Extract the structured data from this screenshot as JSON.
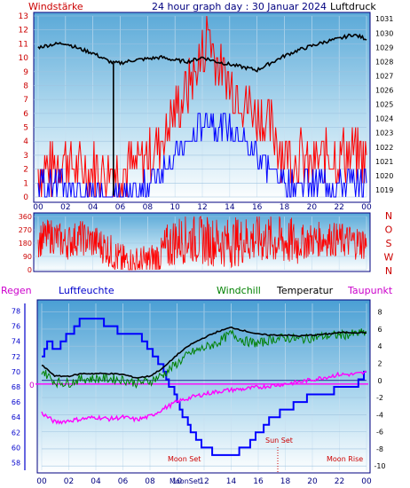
{
  "header": {
    "left_label": "Windstärke",
    "title": "24 hour graph day : 30 Januar 2024",
    "right_label": "Luftdruck"
  },
  "labels": {
    "regen": "Regen",
    "luftfeuchte": "Luftfeuchte",
    "windchill": "Windchill",
    "temperatur": "Temperatur",
    "taupunkt": "Taupunkt",
    "moon_set_1": "Moon Set",
    "moon_set_2": "MoonSet",
    "sun_set": "Sun Set",
    "moon_rise": "Moon Rise",
    "regen_zero": "0"
  },
  "colors": {
    "wind_gust": "#ff0000",
    "wind_avg": "#0000ff",
    "pressure": "#000000",
    "direction": "#ff0000",
    "humidity": "#0000ff",
    "windchill": "#008000",
    "temperature": "#000000",
    "dewpoint": "#ff00ff",
    "axis_left": "#cc0000",
    "axis_humidity": "#0000cc",
    "frame": "#000080"
  },
  "chart_data": [
    {
      "type": "line",
      "name": "wind_and_pressure",
      "xlabel": "",
      "ylabel_left": "Windstärke",
      "ylabel_right": "Luftdruck",
      "x_ticks": [
        "00",
        "02",
        "04",
        "06",
        "08",
        "10",
        "12",
        "14",
        "16",
        "18",
        "20",
        "22",
        "00"
      ],
      "left_ticks": [
        0,
        1,
        2,
        3,
        4,
        5,
        6,
        7,
        8,
        9,
        10,
        11,
        12,
        13
      ],
      "right_ticks": [
        1019,
        1020,
        1021,
        1022,
        1023,
        1024,
        1025,
        1026,
        1027,
        1028,
        1029,
        1030,
        1031
      ],
      "ylim_left": [
        0,
        13
      ],
      "ylim_right": [
        1018.5,
        1031.2
      ],
      "series": [
        {
          "name": "Luftdruck",
          "hours": [
            0,
            1,
            2,
            3,
            4,
            5,
            5.5,
            6,
            7,
            8,
            9,
            10,
            11,
            12,
            13,
            14,
            15,
            16,
            17,
            18,
            19,
            20,
            21,
            22,
            23,
            24
          ],
          "values": [
            1029.0,
            1029.2,
            1029.3,
            1028.9,
            1028.6,
            1028.1,
            1027.9,
            1027.9,
            1028.1,
            1028.2,
            1028.3,
            1028.1,
            1028.0,
            1028.3,
            1028.0,
            1027.8,
            1027.6,
            1027.4,
            1027.9,
            1028.4,
            1028.8,
            1029.1,
            1029.4,
            1029.6,
            1029.9,
            1029.6
          ]
        },
        {
          "name": "Windspitzen",
          "hours": [
            0,
            1,
            2,
            3,
            4,
            5,
            6,
            7,
            8,
            9,
            10,
            11,
            12,
            12.5,
            13,
            14,
            15,
            16,
            17,
            18,
            19,
            20,
            21,
            22,
            23,
            24
          ],
          "values": [
            2,
            2,
            3,
            2,
            2,
            2,
            2,
            2,
            3,
            4,
            6,
            8,
            10,
            12,
            10,
            8,
            7,
            6,
            5,
            3,
            3,
            2,
            3,
            3,
            3,
            3
          ]
        },
        {
          "name": "Wind",
          "hours": [
            0,
            1,
            2,
            3,
            4,
            5,
            6,
            7,
            8,
            9,
            10,
            11,
            12,
            12.5,
            13,
            14,
            15,
            16,
            17,
            18,
            19,
            20,
            21,
            22,
            23,
            24
          ],
          "values": [
            1,
            1,
            1,
            0,
            0,
            0,
            0,
            0,
            1,
            2,
            3,
            4,
            5,
            6,
            5,
            5,
            4,
            3,
            2,
            1,
            1,
            1,
            1,
            1,
            1,
            1
          ]
        }
      ]
    },
    {
      "type": "line",
      "name": "wind_direction",
      "x_ticks": [
        "00",
        "02",
        "04",
        "06",
        "08",
        "10",
        "12",
        "14",
        "16",
        "18",
        "20",
        "22",
        "00"
      ],
      "y_ticks": [
        0,
        90,
        180,
        270,
        360
      ],
      "compass": [
        "N",
        "W",
        "S",
        "O",
        "N"
      ],
      "ylim": [
        0,
        360
      ],
      "series": [
        {
          "name": "Windrichtung",
          "hours": [
            0,
            1,
            2,
            3,
            4,
            5,
            6,
            7,
            8,
            9,
            10,
            11,
            12,
            13,
            14,
            15,
            16,
            17,
            18,
            19,
            20,
            21,
            22,
            23,
            24
          ],
          "values": [
            200,
            230,
            180,
            220,
            190,
            150,
            60,
            40,
            50,
            100,
            200,
            210,
            200,
            190,
            180,
            200,
            210,
            200,
            190,
            180,
            200,
            210,
            200,
            190,
            180
          ]
        }
      ]
    },
    {
      "type": "line",
      "name": "temperature_humidity",
      "x_ticks": [
        "00",
        "02",
        "04",
        "06",
        "08",
        "10",
        "12",
        "14",
        "16",
        "18",
        "20",
        "22",
        "00"
      ],
      "left_ticks": [
        58,
        60,
        62,
        64,
        66,
        68,
        70,
        72,
        74,
        76,
        78
      ],
      "right_ticks": [
        -10,
        -8,
        -6,
        -4,
        -2,
        0,
        2,
        4,
        6,
        8
      ],
      "ylim_left": [
        57,
        79
      ],
      "ylim_right": [
        -10.5,
        9
      ],
      "series": [
        {
          "name": "Luftfeuchte",
          "hours": [
            0,
            0.5,
            1,
            2,
            3,
            4,
            5,
            6,
            7,
            8,
            9,
            9.5,
            10,
            11,
            12,
            13,
            14,
            15,
            16,
            17,
            18,
            19,
            20,
            21,
            22,
            23,
            24
          ],
          "values": [
            72,
            74,
            73,
            75,
            77,
            77,
            76,
            75,
            75,
            73,
            70,
            68,
            66,
            62,
            60,
            59,
            59,
            60,
            62,
            64,
            65,
            66,
            67,
            67,
            68,
            68,
            70
          ]
        },
        {
          "name": "Temperatur",
          "hours": [
            0,
            1,
            2,
            3,
            4,
            5,
            6,
            7,
            8,
            9,
            10,
            11,
            12,
            13,
            14,
            15,
            16,
            17,
            18,
            19,
            20,
            21,
            22,
            23,
            24
          ],
          "values": [
            1.8,
            0.5,
            0.5,
            0.8,
            0.8,
            0.8,
            0.7,
            0.3,
            0.5,
            1.5,
            3.0,
            4.2,
            5.0,
            5.7,
            6.2,
            5.8,
            5.4,
            5.3,
            5.3,
            5.2,
            5.3,
            5.4,
            5.6,
            5.6,
            5.6
          ]
        },
        {
          "name": "Windchill",
          "hours": [
            0,
            1,
            2,
            3,
            4,
            5,
            6,
            7,
            8,
            9,
            10,
            11,
            12,
            13,
            14,
            15,
            16,
            17,
            18,
            19,
            20,
            21,
            22,
            23,
            24
          ],
          "values": [
            1.2,
            -0.2,
            -0.3,
            0.2,
            0.2,
            0.2,
            0.1,
            -0.3,
            -0.1,
            0.7,
            2.0,
            3.2,
            3.8,
            4.4,
            5.5,
            4.6,
            4.3,
            4.8,
            5.0,
            4.8,
            5.0,
            5.2,
            5.3,
            5.4,
            5.6
          ]
        },
        {
          "name": "Taupunkt",
          "hours": [
            0,
            1,
            2,
            3,
            4,
            5,
            6,
            7,
            8,
            9,
            10,
            11,
            12,
            13,
            14,
            15,
            16,
            17,
            18,
            19,
            20,
            21,
            22,
            23,
            24
          ],
          "values": [
            -3.8,
            -4.9,
            -4.7,
            -4.5,
            -4.3,
            -4.5,
            -4.3,
            -4.6,
            -4.2,
            -3.3,
            -2.5,
            -2.0,
            -1.6,
            -1.3,
            -1.1,
            -1.0,
            -0.8,
            -0.6,
            -0.4,
            -0.2,
            0.1,
            0.4,
            0.7,
            0.7,
            0.9
          ]
        }
      ]
    }
  ]
}
